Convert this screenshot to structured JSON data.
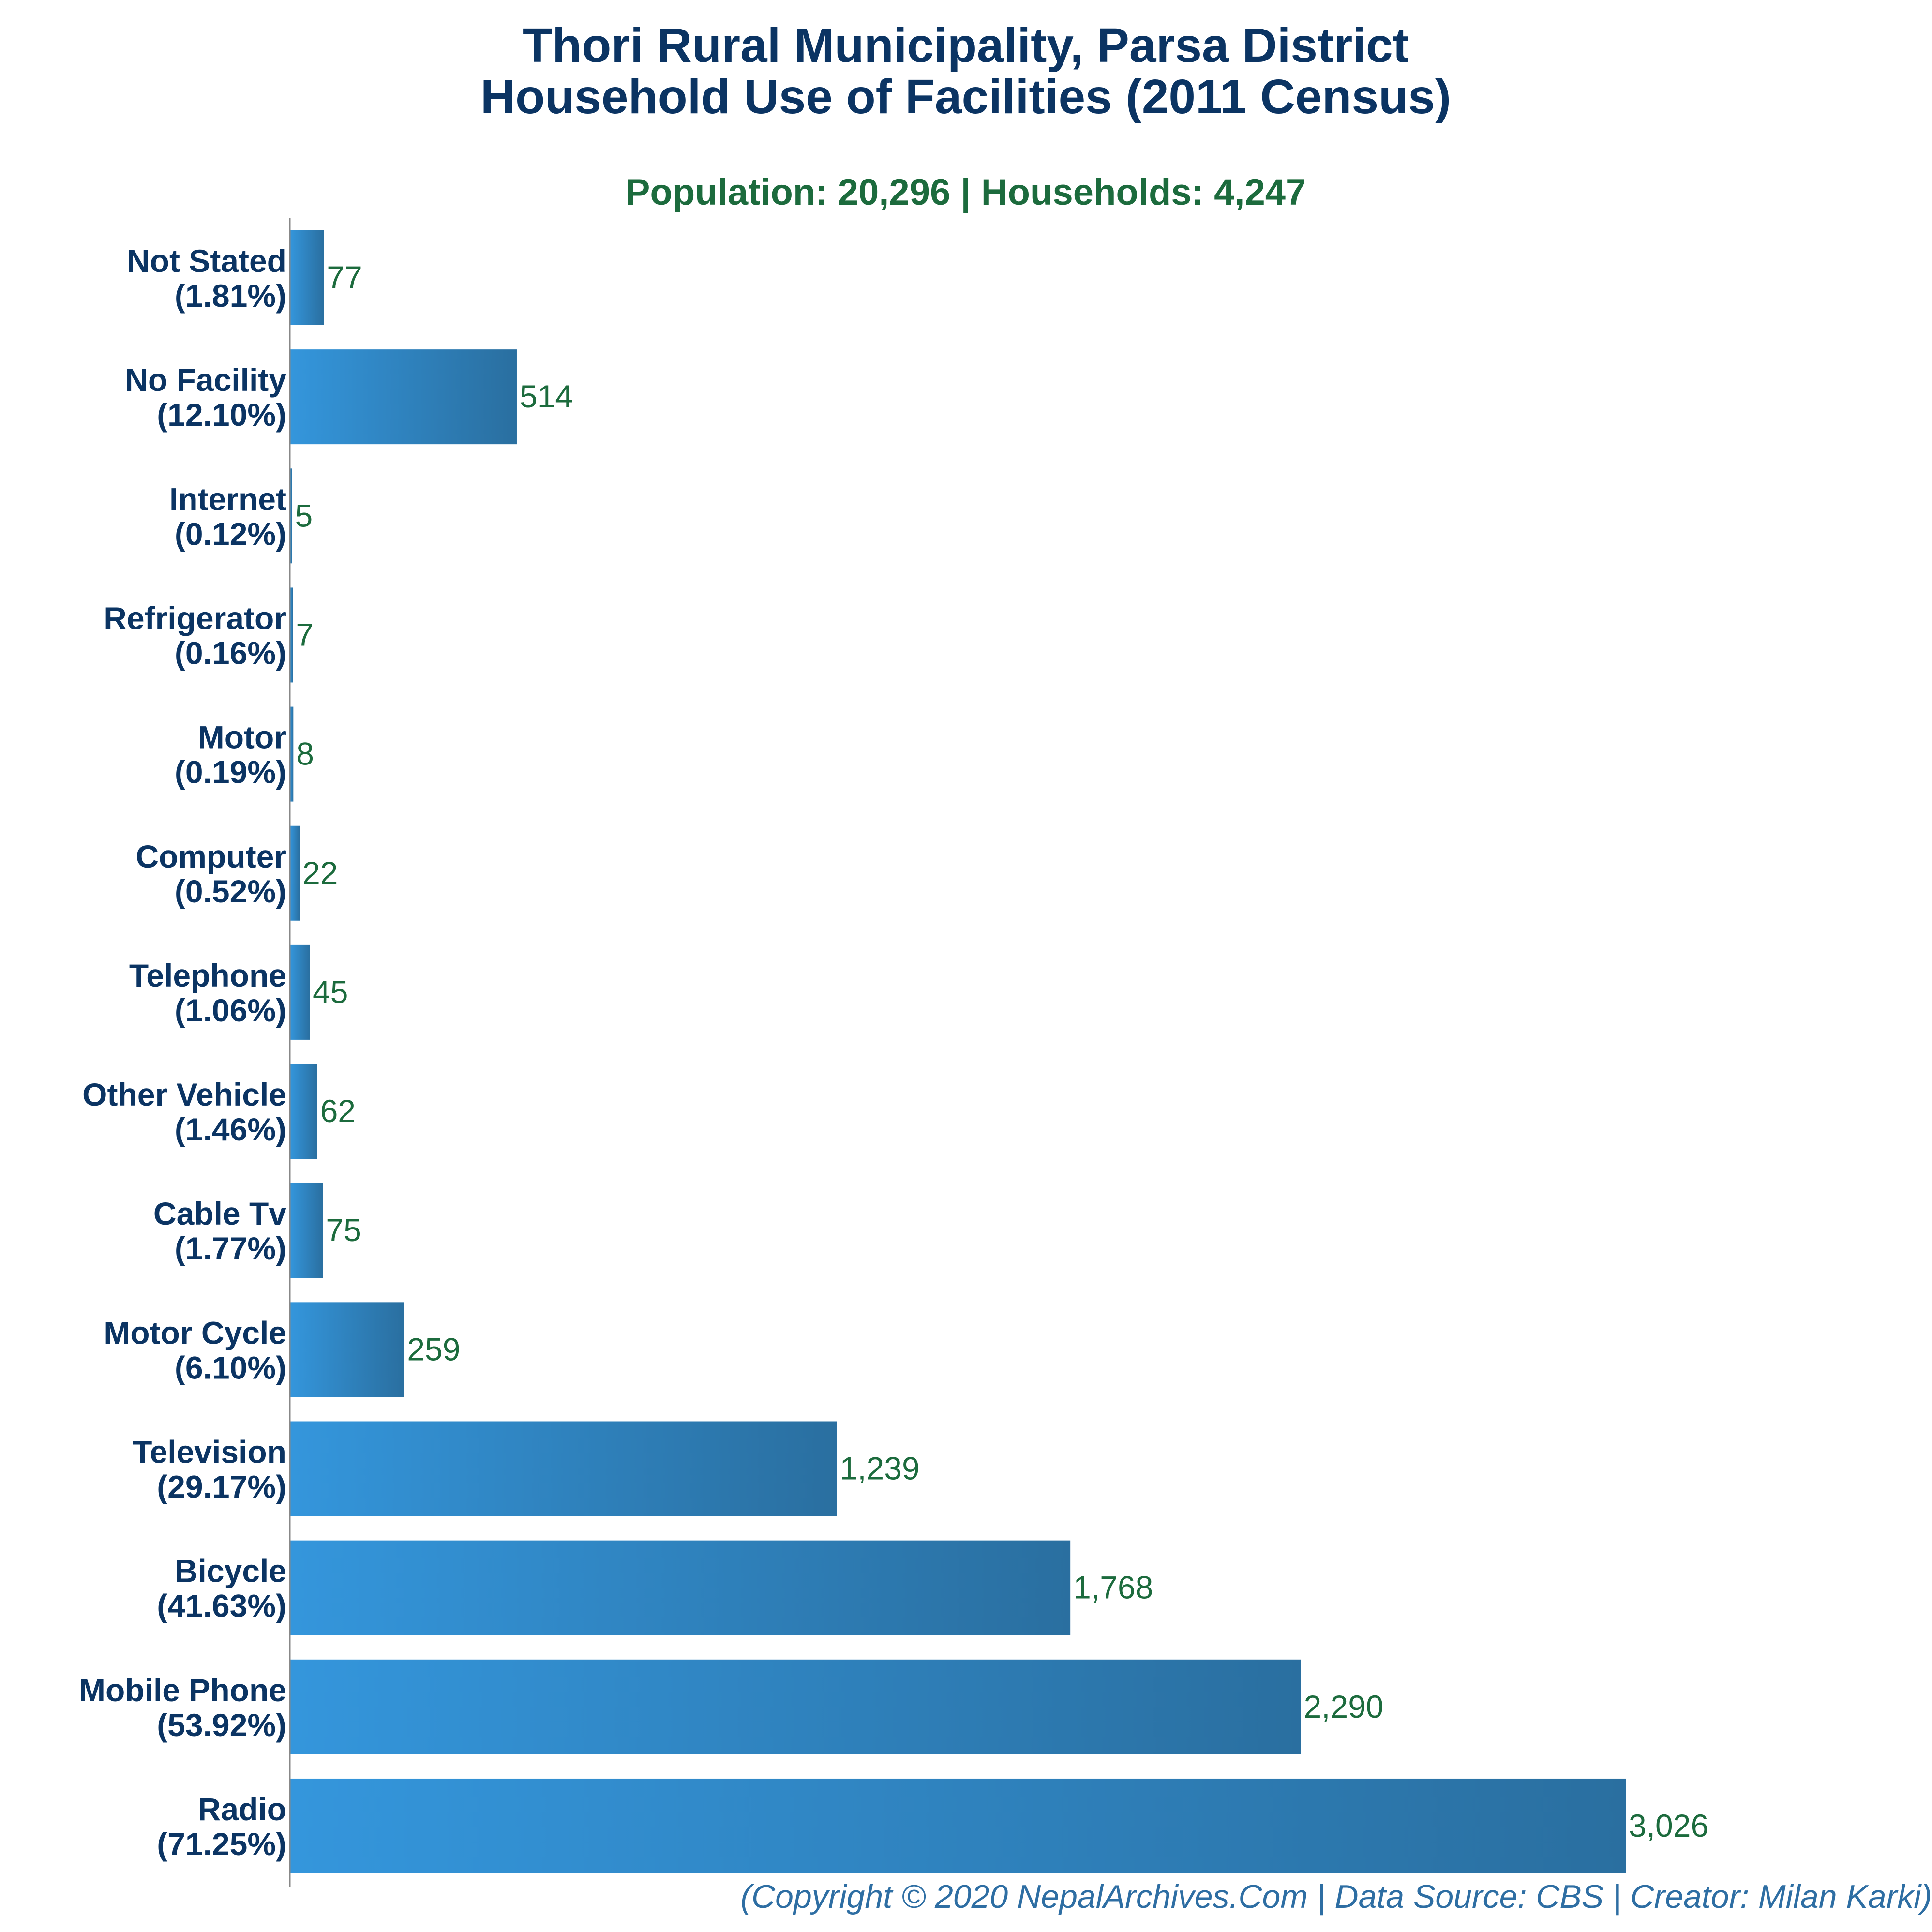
{
  "chart_data": {
    "type": "bar",
    "orientation": "horizontal",
    "title_line1": "Thori Rural Municipality, Parsa District",
    "title_line2": "Household Use of Facilities (2011 Census)",
    "subtitle": "Population: 20,296 | Households: 4,247",
    "categories": [
      "Not Stated",
      "No Facility",
      "Internet",
      "Refrigerator",
      "Motor",
      "Computer",
      "Telephone",
      "Other Vehicle",
      "Cable Tv",
      "Motor Cycle",
      "Television",
      "Bicycle",
      "Mobile Phone",
      "Radio"
    ],
    "percent_labels": [
      "(1.81%)",
      "(12.10%)",
      "(0.12%)",
      "(0.16%)",
      "(0.19%)",
      "(0.52%)",
      "(1.06%)",
      "(1.46%)",
      "(1.77%)",
      "(6.10%)",
      "(29.17%)",
      "(41.63%)",
      "(53.92%)",
      "(71.25%)"
    ],
    "values": [
      77,
      514,
      5,
      7,
      8,
      22,
      45,
      62,
      75,
      259,
      1239,
      1768,
      2290,
      3026
    ],
    "value_labels": [
      "77",
      "514",
      "5",
      "7",
      "8",
      "22",
      "45",
      "62",
      "75",
      "259",
      "1,239",
      "1,768",
      "2,290",
      "3,026"
    ],
    "xlim": [
      0,
      3026
    ],
    "grid": false,
    "legend": "none",
    "colors": {
      "bar_light": "#3496dc",
      "bar_dark": "#2a6fa0",
      "title": "#0b3463",
      "subtitle": "#1c6b3d",
      "value_label": "#1c6b3d",
      "footer": "#2e6ea3",
      "axis": "#888888"
    }
  },
  "footer": "(Copyright © 2020 NepalArchives.Com | Data Source: CBS | Creator: Milan Karki)"
}
